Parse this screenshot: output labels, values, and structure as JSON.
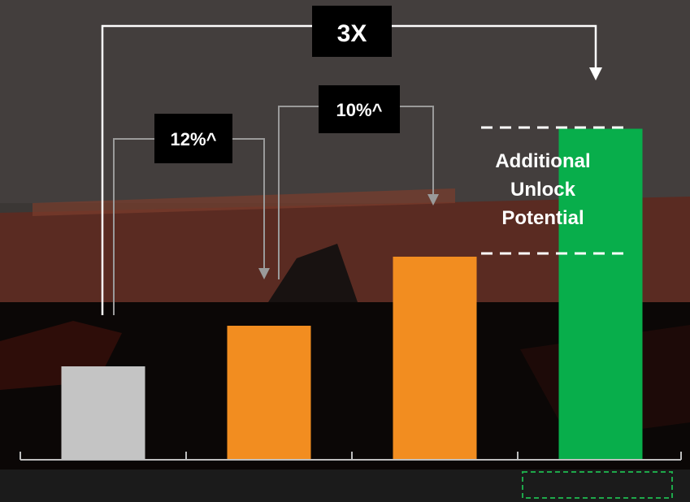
{
  "chart_data": {
    "type": "bar",
    "categories": [
      "",
      "",
      "",
      ""
    ],
    "values": [
      23,
      33,
      50,
      81.5
    ],
    "ylim": [
      0,
      100
    ],
    "title": "",
    "xlabel": "",
    "ylabel": "",
    "grid": false,
    "legend": "none",
    "colors": [
      "#c4c4c4",
      "#f28d20",
      "#f28d20",
      "#08ae4b"
    ],
    "annotations": {
      "growth_1_2": "12%^",
      "growth_2_3": "10%^",
      "growth_total": "3X",
      "unlock_line1": "Additional",
      "unlock_line2": "Unlock",
      "unlock_line3": "Potential"
    }
  },
  "colors": {
    "background_upper": "#3a3634",
    "background_lower": "#0b0706",
    "building": "#5a2a20",
    "connector_gray": "#9a9a9a",
    "connector_white": "#ffffff",
    "label_box": "#000000",
    "axis": "#bdbdbd",
    "highlight_dash": "#1ea84a"
  }
}
